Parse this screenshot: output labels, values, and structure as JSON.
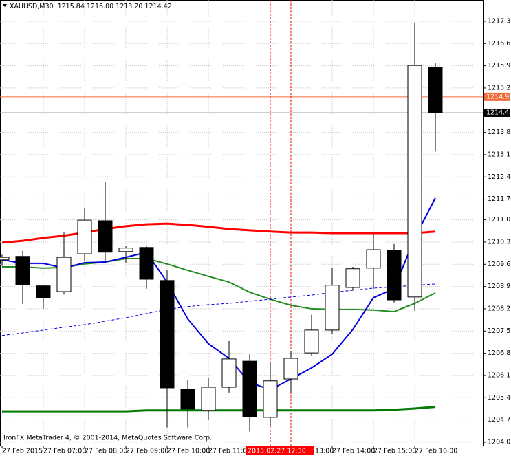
{
  "chart_data": {
    "type": "candlestick",
    "title": "XAUUSD,M30",
    "last_bar_labels": [
      "1215.84",
      "1216.00",
      "1213.20",
      "1214.42"
    ],
    "categories": [
      "27 Feb 2015",
      null,
      "27 Feb 07:00",
      null,
      "27 Feb 08:00",
      null,
      "27 Feb 09:00",
      null,
      "27 Feb 10:00",
      null,
      "27 Feb 11:00",
      null,
      null,
      null,
      "27 Feb 13:00",
      null,
      "27 Feb 14:00",
      null,
      "27 Feb 15:00",
      null,
      "27 Feb 16:00",
      null
    ],
    "open": [
      1209.79,
      1209.9,
      1208.97,
      1208.79,
      1209.98,
      1211.02,
      1210.05,
      1210.18,
      1209.14,
      1205.72,
      1205.05,
      1205.78,
      1206.6,
      1204.83,
      1206.04,
      1206.86,
      1207.58,
      1208.92,
      1209.53,
      1210.09,
      1208.62,
      1215.84
    ],
    "high": [
      1209.95,
      1210.07,
      1209.01,
      1210.65,
      1211.43,
      1212.23,
      1210.24,
      1210.22,
      1209.46,
      1206.0,
      1206.09,
      1207.23,
      1206.84,
      1206.54,
      1206.93,
      1208.06,
      1209.53,
      1209.57,
      1210.61,
      1210.29,
      1217.26,
      1216.0
    ],
    "low": [
      1209.6,
      1208.4,
      1208.25,
      1208.7,
      1209.74,
      1209.74,
      1209.7,
      1208.88,
      1204.51,
      1204.51,
      1204.76,
      1205.61,
      1204.38,
      1204.55,
      1205.59,
      1206.76,
      1207.47,
      1208.83,
      1208.88,
      1208.45,
      1208.19,
      1213.2
    ],
    "close": [
      1209.87,
      1209.01,
      1208.6,
      1209.87,
      1211.04,
      1210.03,
      1210.16,
      1209.18,
      1205.76,
      1205.09,
      1205.78,
      1206.67,
      1204.85,
      1205.98,
      1206.69,
      1207.58,
      1208.99,
      1209.51,
      1210.11,
      1208.53,
      1215.91,
      1214.42
    ],
    "lines": [
      {
        "color": "#ff0000",
        "width": 3,
        "dash": false,
        "values": [
          1210.33,
          1210.39,
          1210.48,
          1210.55,
          1210.65,
          1210.76,
          1210.85,
          1210.91,
          1210.93,
          1210.89,
          1210.83,
          1210.76,
          1210.72,
          1210.68,
          1210.65,
          1210.65,
          1210.63,
          1210.63,
          1210.63,
          1210.63,
          1210.63,
          1210.68
        ]
      },
      {
        "color": "#228b22",
        "width": 2,
        "dash": false,
        "values": [
          1209.57,
          1209.57,
          1209.53,
          1209.55,
          1209.66,
          1209.72,
          1209.83,
          1209.83,
          1209.66,
          1209.46,
          1209.27,
          1209.09,
          1208.77,
          1208.55,
          1208.36,
          1208.25,
          1208.23,
          1208.23,
          1208.21,
          1208.16,
          1208.42,
          1208.75
        ]
      },
      {
        "color": "#0000dd",
        "width": 2,
        "dash": false,
        "values": [
          1209.79,
          1209.68,
          1209.68,
          1209.53,
          1209.7,
          1209.72,
          1209.87,
          1210.03,
          1209.09,
          1207.93,
          1207.15,
          1206.69,
          1205.93,
          1205.7,
          1206.04,
          1206.39,
          1206.82,
          1207.6,
          1208.6,
          1208.88,
          1210.48,
          1211.74
        ]
      },
      {
        "color": "#0000dd",
        "width": 1,
        "dash": true,
        "values": [
          1207.41,
          1207.49,
          1207.58,
          1207.67,
          1207.75,
          1207.86,
          1207.97,
          1208.1,
          1208.23,
          1208.32,
          1208.38,
          1208.42,
          1208.49,
          1208.55,
          1208.62,
          1208.68,
          1208.77,
          1208.83,
          1208.9,
          1208.94,
          1208.99,
          1209.03
        ]
      },
      {
        "color": "#007a00",
        "width": 3,
        "dash": false,
        "values": [
          1205.02,
          1205.02,
          1205.02,
          1205.02,
          1205.02,
          1205.02,
          1205.02,
          1205.05,
          1205.05,
          1205.05,
          1205.05,
          1205.05,
          1205.05,
          1205.05,
          1205.05,
          1205.05,
          1205.05,
          1205.05,
          1205.05,
          1205.07,
          1205.11,
          1205.16
        ]
      }
    ],
    "price_lines": [
      {
        "value": 1214.92,
        "color": "#f26b3a",
        "box": "#f26b3a"
      },
      {
        "value": 1214.42,
        "color": "#a0a0a0",
        "box": "#000000"
      }
    ],
    "crosshair_label": "2015.02.27 12:30",
    "crosshair_color": "#ff0000",
    "footer": "IronFX MetaTrader 4, © 2001-2014, MetaQuotes Software Corp.",
    "ylim": [
      1203.94,
      1217.97
    ],
    "yticks": [
      {
        "value": 1217.3,
        "label": "1217.30"
      },
      {
        "value": 1216.6,
        "label": "1216.60"
      },
      {
        "value": 1215.9,
        "label": "1215.90"
      },
      {
        "value": 1215.2,
        "label": "1215.20"
      },
      {
        "value": 1213.8,
        "label": "1213.80"
      },
      {
        "value": 1213.1,
        "label": "1213.10"
      },
      {
        "value": 1212.4,
        "label": "1212.40"
      },
      {
        "value": 1211.7,
        "label": "1211.70"
      },
      1211.05,
      1210.35,
      1209.65,
      1208.95,
      1208.25,
      1207.55,
      1206.85,
      1206.15,
      1205.45,
      1204.75,
      1204.05
    ],
    "grid": true
  }
}
